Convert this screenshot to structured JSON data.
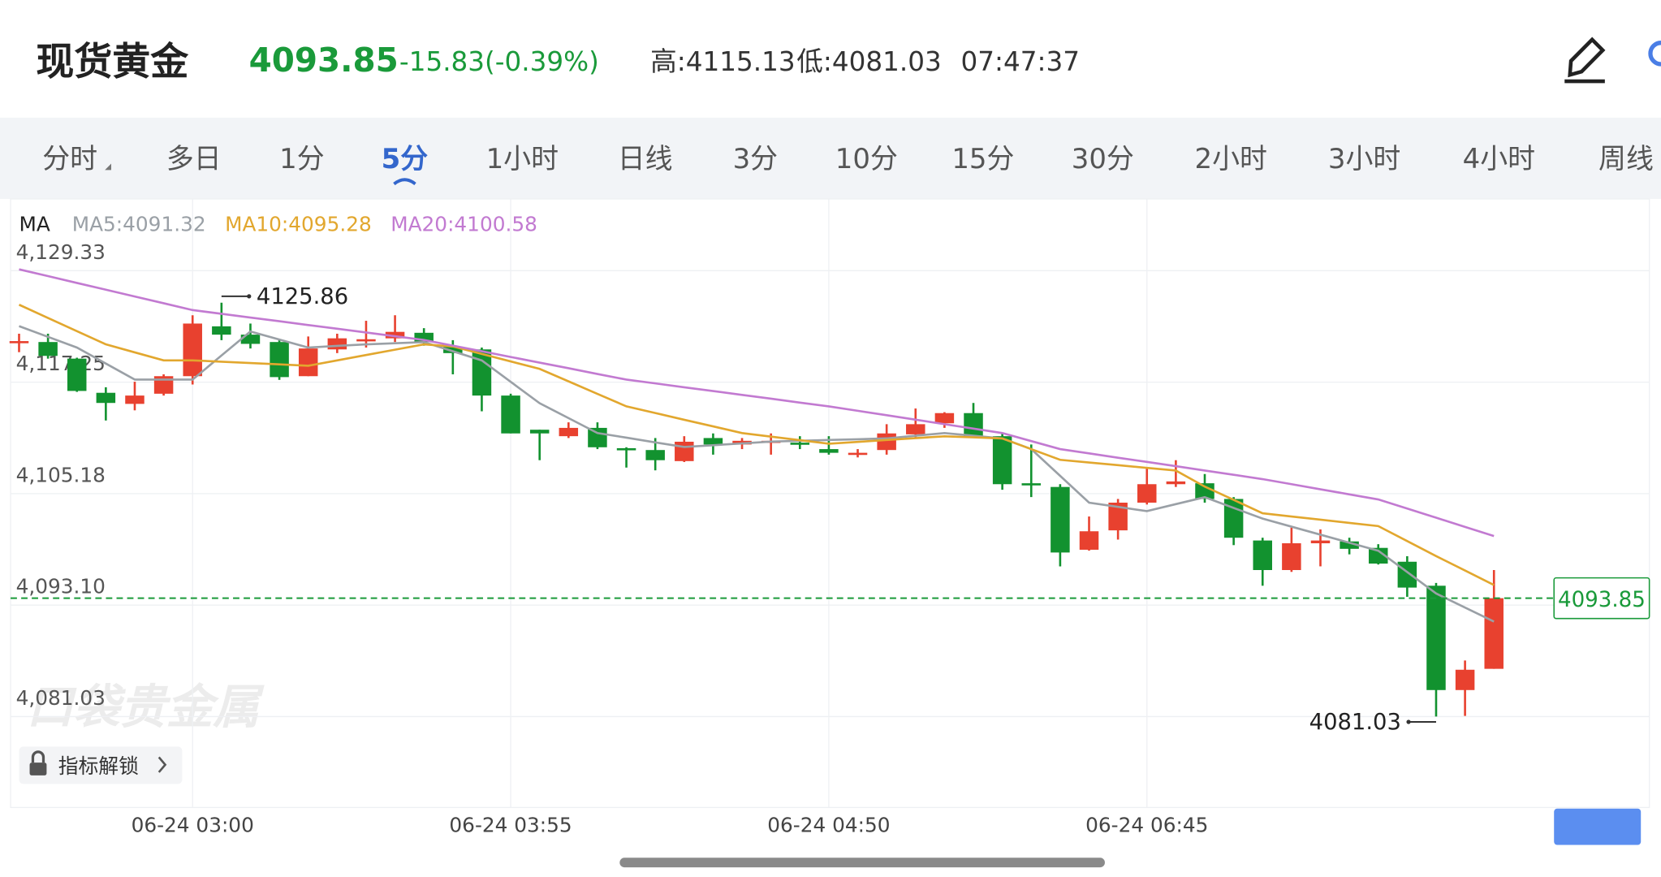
{
  "header": {
    "title": "现货黄金",
    "price": "4093.85",
    "change": "-15.83(-0.39%)",
    "high": "高:4115.13",
    "low": "低:4081.03",
    "time": "07:47:37"
  },
  "tabs": [
    "分时",
    "多日",
    "1分",
    "5分",
    "1小时",
    "日线",
    "3分",
    "10分",
    "15分",
    "30分",
    "2小时",
    "3小时",
    "4小时",
    "周线"
  ],
  "selected_tab": 3,
  "indicator_button": "指标解锁",
  "watermark": "口袋贵金属",
  "chart_data": {
    "type": "candlestick",
    "legend_title": "MA",
    "up_color": "#e8412f",
    "down_color": "#12922f",
    "categories": [
      null,
      null,
      null,
      null,
      null,
      null,
      "06-24 03:00",
      null,
      null,
      null,
      null,
      null,
      null,
      null,
      null,
      null,
      null,
      "06-24 03:55",
      null,
      null,
      null,
      null,
      null,
      null,
      null,
      null,
      null,
      null,
      "06-24 04:50",
      null,
      null,
      null,
      null,
      null,
      null,
      null,
      null,
      null,
      null,
      "06-24 06:45",
      null,
      null,
      null,
      null,
      null,
      null,
      null,
      null,
      null,
      null,
      null,
      null
    ],
    "open": [
      4121.6,
      4121.6,
      4119.8,
      4116.1,
      4114.9,
      4116.0,
      4117.9,
      4123.3,
      4122.4,
      4121.6,
      4117.9,
      4120.8,
      4121.8,
      4122.0,
      4122.6,
      4121.1,
      4120.8,
      4115.8,
      4112.1,
      4111.4,
      4112.3,
      4110.1,
      4109.9,
      4108.7,
      4111.2,
      4110.5,
      4110.9,
      4110.7,
      4110.0,
      4109.4,
      4109.9,
      4111.6,
      4112.8,
      4113.9,
      4111.4,
      4106.3,
      4105.9,
      4099.1,
      4101.2,
      4104.2,
      4106.2,
      4106.3,
      4104.6,
      4100.1,
      4096.9,
      4099.8,
      4100.0,
      4099.3,
      4097.8,
      4095.2,
      4083.9,
      4086.2
    ],
    "high": [
      4122.5,
      4122.5,
      4119.9,
      4116.7,
      4117.3,
      4118.1,
      4124.5,
      4125.86,
      4123.6,
      4121.8,
      4122.2,
      4122.5,
      4123.9,
      4124.5,
      4123.1,
      4121.8,
      4121.0,
      4116.0,
      4112.1,
      4112.9,
      4112.9,
      4110.2,
      4111.2,
      4111.4,
      4111.7,
      4111.2,
      4111.7,
      4111.4,
      4111.4,
      4110.0,
      4112.7,
      4114.4,
      4114.0,
      4115.0,
      4111.7,
      4110.5,
      4106.2,
      4102.7,
      4104.6,
      4107.9,
      4108.8,
      4107.3,
      4104.8,
      4100.4,
      4101.5,
      4101.3,
      4100.4,
      4099.7,
      4098.4,
      4095.5,
      4087.1,
      4096.9
    ],
    "low": [
      4120.5,
      4119.8,
      4116.2,
      4113.1,
      4114.2,
      4115.8,
      4117.0,
      4121.8,
      4120.9,
      4117.5,
      4117.9,
      4120.4,
      4121.0,
      4121.6,
      4121.2,
      4118.1,
      4114.1,
      4111.7,
      4108.8,
      4111.2,
      4110.0,
      4108.0,
      4107.7,
      4108.6,
      4109.4,
      4110.0,
      4109.4,
      4110.0,
      4109.4,
      4109.1,
      4109.4,
      4111.2,
      4112.3,
      4111.2,
      4105.6,
      4104.8,
      4097.3,
      4099.0,
      4100.2,
      4104.0,
      4105.9,
      4104.2,
      4099.6,
      4095.2,
      4096.7,
      4097.3,
      4098.6,
      4097.5,
      4094.0,
      4081.03,
      4081.1,
      4086.2
    ],
    "close": [
      4121.7,
      4120.1,
      4116.3,
      4115.0,
      4115.8,
      4117.9,
      4123.6,
      4122.4,
      4121.4,
      4117.8,
      4120.9,
      4122.0,
      4121.9,
      4122.7,
      4121.6,
      4120.4,
      4115.8,
      4111.7,
      4111.7,
      4112.3,
      4110.2,
      4109.9,
      4108.8,
      4110.8,
      4110.5,
      4110.9,
      4110.9,
      4110.6,
      4109.6,
      4109.6,
      4111.7,
      4112.7,
      4113.9,
      4111.4,
      4106.2,
      4106.2,
      4098.8,
      4101.1,
      4104.2,
      4106.2,
      4106.5,
      4104.6,
      4100.4,
      4096.9,
      4099.8,
      4100.1,
      4099.2,
      4097.6,
      4095.0,
      4083.9,
      4086.1,
      4093.85
    ],
    "series": [
      {
        "name": "MA5:4091.32",
        "color": "#9aa0a6",
        "values": [
          4123.32,
          4122.16,
          4121.0,
          4119.27,
          4117.53,
          4117.53,
          4117.53,
          4120.14,
          4122.74,
          4121.87,
          4121.0,
          4121.18,
          4121.35,
          4121.47,
          4121.59,
          4120.6,
          4119.61,
          4117.29,
          4114.97,
          4113.36,
          4111.74,
          4111.24,
          4110.73,
          4110.23,
          4110.42,
          4110.62,
          4110.81,
          4110.9,
          4110.99,
          4111.07,
          4111.16,
          4111.45,
          4111.74,
          4111.45,
          4111.16,
          4110.0,
          4107.1,
          4104.2,
          4103.74,
          4103.28,
          4104.04,
          4104.79,
          4103.63,
          4102.47,
          4101.6,
          4100.73,
          4099.86,
          4098.99,
          4096.68,
          4094.36,
          4092.84,
          4091.32
        ]
      },
      {
        "name": "MA10:4095.28",
        "color": "#e2a72e",
        "values": [
          4125.64,
          4124.21,
          4122.78,
          4121.35,
          4120.48,
          4119.61,
          4119.61,
          4119.47,
          4119.32,
          4119.18,
          4119.03,
          4119.61,
          4120.19,
          4120.77,
          4121.35,
          4121.12,
          4120.31,
          4119.5,
          4118.69,
          4117.34,
          4115.98,
          4114.63,
          4113.91,
          4113.18,
          4112.46,
          4111.74,
          4111.35,
          4110.97,
          4110.58,
          4110.78,
          4110.99,
          4111.19,
          4111.39,
          4111.28,
          4111.16,
          4110.0,
          4108.84,
          4108.55,
          4108.26,
          4107.97,
          4107.68,
          4105.94,
          4104.5,
          4103.05,
          4102.7,
          4102.36,
          4102.01,
          4101.66,
          4100.04,
          4098.41,
          4096.85,
          4095.28
        ]
      },
      {
        "name": "MA20:4100.58",
        "color": "#c27ad1",
        "values": [
          4129.47,
          4128.74,
          4128.0,
          4127.27,
          4126.53,
          4125.8,
          4125.06,
          4124.66,
          4124.25,
          4123.85,
          4123.44,
          4123.04,
          4122.63,
          4122.23,
          4121.82,
          4121.21,
          4120.6,
          4119.98,
          4119.37,
          4118.76,
          4118.14,
          4117.53,
          4117.12,
          4116.7,
          4116.29,
          4115.87,
          4115.46,
          4115.04,
          4114.63,
          4114.15,
          4113.67,
          4113.19,
          4112.7,
          4112.22,
          4111.74,
          4110.87,
          4110.0,
          4109.54,
          4109.07,
          4108.61,
          4108.15,
          4107.68,
          4107.22,
          4106.75,
          4106.2,
          4105.65,
          4105.1,
          4104.55,
          4103.56,
          4102.57,
          4101.57,
          4100.58
        ]
      }
    ],
    "last_price": 4093.85,
    "last_price_color": "#1a9a3a",
    "ylim": [
      4071.18,
      4137.1
    ],
    "yticks": [
      {
        "value": 4081.03,
        "label": "4,081.03"
      },
      {
        "value": 4093.1,
        "label": "4,093.10"
      },
      {
        "value": 4105.18,
        "label": "4,105.18"
      },
      {
        "value": 4117.25,
        "label": "4,117.25"
      },
      {
        "value": 4129.33,
        "label": "4,129.33"
      }
    ],
    "grid": true
  }
}
